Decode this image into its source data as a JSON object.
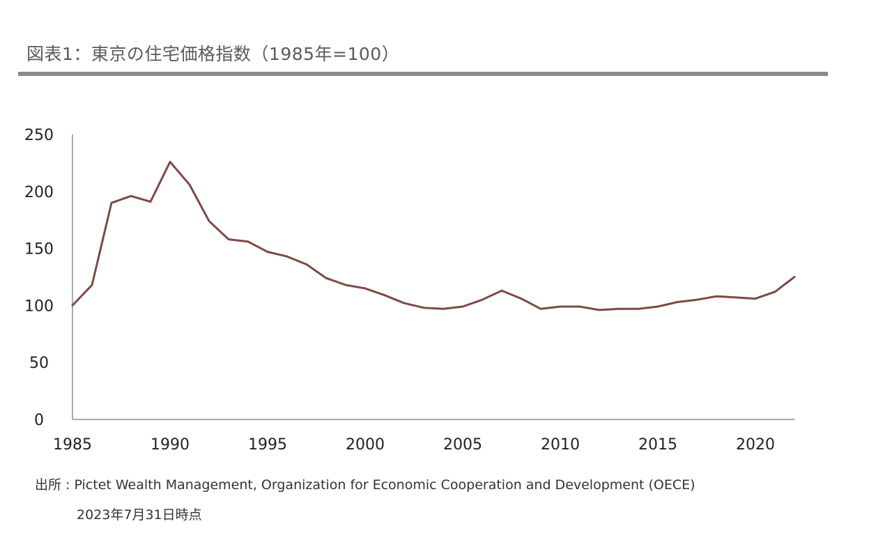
{
  "header": {
    "title": "図表1：東京の住宅価格指数（1985年=100）"
  },
  "footer": {
    "source": "出所 : Pictet Wealth Management, Organization for Economic Cooperation and Development (OECE)",
    "as_of": "2023年7月31日時点"
  },
  "chart_data": {
    "type": "line",
    "title": "図表1：東京の住宅価格指数（1985年=100）",
    "xlabel": "",
    "ylabel": "",
    "xlim": [
      1985,
      2022
    ],
    "ylim": [
      0,
      250
    ],
    "x_ticks": [
      1985,
      1990,
      1995,
      2000,
      2005,
      2010,
      2015,
      2020
    ],
    "y_ticks": [
      0,
      50,
      100,
      150,
      200,
      250
    ],
    "grid": false,
    "legend": "none",
    "series": [
      {
        "color": "#7b4a44",
        "x": [
          1985,
          1986,
          1987,
          1988,
          1989,
          1990,
          1991,
          1992,
          1993,
          1994,
          1995,
          1996,
          1997,
          1998,
          1999,
          2000,
          2001,
          2002,
          2003,
          2004,
          2005,
          2006,
          2007,
          2008,
          2009,
          2010,
          2011,
          2012,
          2013,
          2014,
          2015,
          2016,
          2017,
          2018,
          2019,
          2020,
          2021,
          2022
        ],
        "y": [
          100,
          118,
          190,
          196,
          191,
          226,
          206,
          174,
          158,
          156,
          147,
          143,
          136,
          124,
          118,
          115,
          109,
          102,
          98,
          97,
          99,
          105,
          113,
          106,
          97,
          99,
          99,
          96,
          97,
          97,
          99,
          103,
          105,
          108,
          107,
          106,
          112,
          125
        ]
      }
    ]
  }
}
